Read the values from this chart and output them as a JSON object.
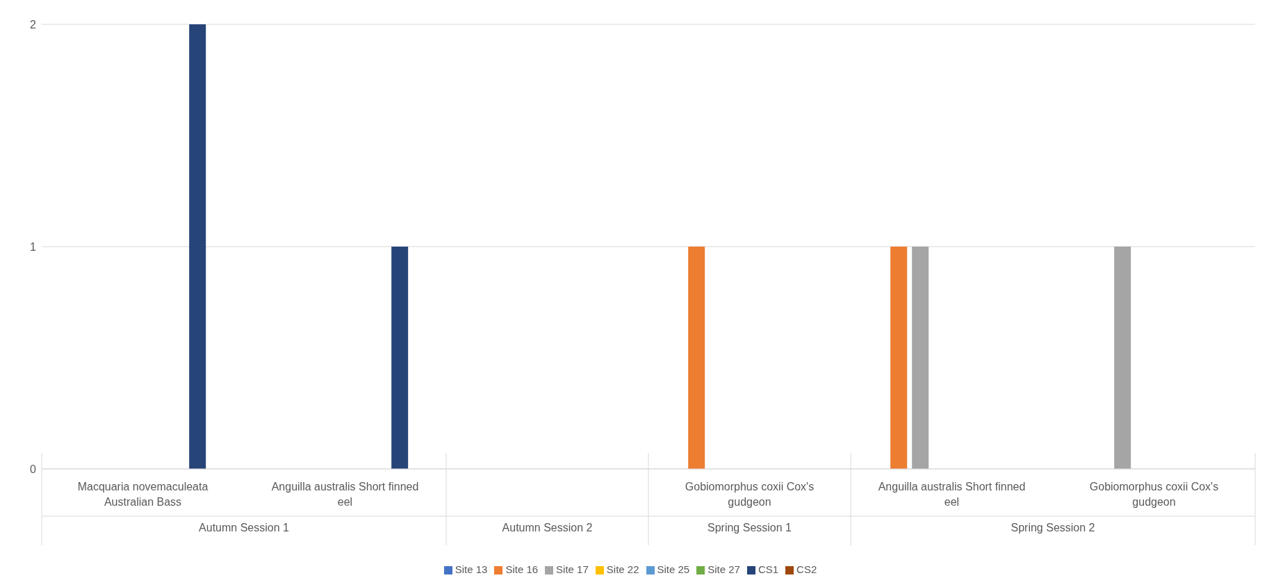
{
  "chart_data": {
    "type": "bar",
    "categories": [
      "Macquaria novemaculeata Australian Bass",
      "Anguilla australis Short finned eel",
      null,
      "Gobiomorphus coxii Cox's gudgeon",
      "Anguilla australis Short finned eel",
      "Gobiomorphus coxii Cox's gudgeon"
    ],
    "series": [
      {
        "name": "Site 13",
        "color": "#4472c4",
        "values": [
          null,
          null,
          null,
          null,
          null,
          null
        ]
      },
      {
        "name": "Site 16",
        "color": "#ed7d31",
        "values": [
          null,
          null,
          null,
          1,
          1,
          null
        ]
      },
      {
        "name": "Site 17",
        "color": "#a5a5a5",
        "values": [
          null,
          null,
          null,
          null,
          1,
          1
        ]
      },
      {
        "name": "Site 22",
        "color": "#ffc000",
        "values": [
          null,
          null,
          null,
          null,
          null,
          null
        ]
      },
      {
        "name": "Site 25",
        "color": "#5b9bd5",
        "values": [
          null,
          null,
          null,
          null,
          null,
          null
        ]
      },
      {
        "name": "Site 27",
        "color": "#70ad47",
        "values": [
          null,
          null,
          null,
          null,
          null,
          null
        ]
      },
      {
        "name": "CS1",
        "color": "#264478",
        "values": [
          2,
          1,
          null,
          null,
          null,
          null
        ]
      },
      {
        "name": "CS2",
        "color": "#9e480e",
        "values": [
          null,
          null,
          null,
          null,
          null,
          null
        ]
      }
    ],
    "ylim": [
      0,
      2
    ],
    "yticks": [
      0,
      1,
      2
    ],
    "grid": "y",
    "legend": "bottom",
    "annotations": [
      "Autumn Session 1",
      "Autumn Session 2",
      "Spring Session 1",
      "Spring Session 2"
    ]
  }
}
